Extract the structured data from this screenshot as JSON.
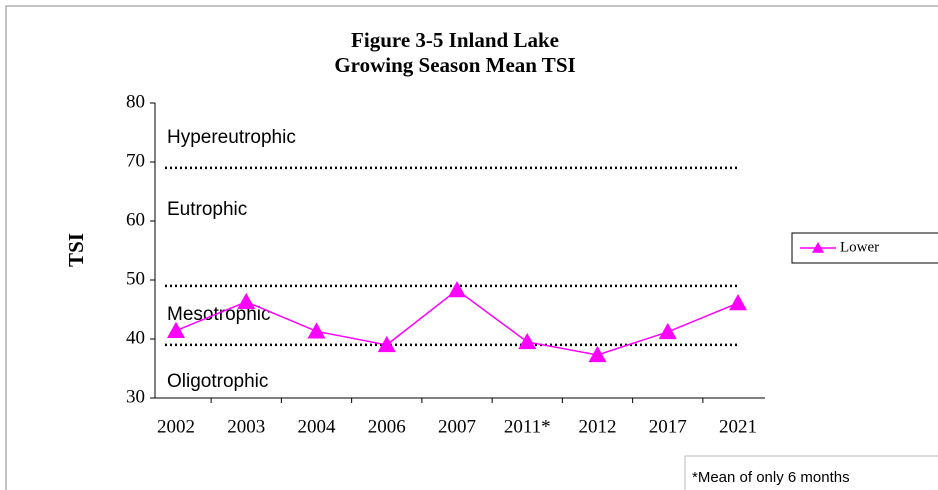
{
  "chart_data": {
    "type": "line",
    "title": [
      "Figure 3-5 Inland Lake",
      "Growing Season Mean TSI"
    ],
    "y_label": "TSI",
    "categories": [
      "2002",
      "2003",
      "2004",
      "2006",
      "2007",
      "2011*",
      "2012",
      "2017",
      "2021"
    ],
    "series": [
      {
        "name": "Lower",
        "color": "#ff00ff",
        "values": [
          41.4,
          46.3,
          41.3,
          39.0,
          48.3,
          39.5,
          37.3,
          41.2,
          46.1
        ]
      }
    ],
    "ylim": [
      30,
      80
    ],
    "yticks": [
      30,
      40,
      50,
      60,
      70,
      80
    ],
    "reference_lines": [
      69,
      49,
      39
    ],
    "zones": [
      "Hypereutrophic",
      "Eutrophic",
      "Mesotrophic",
      "Oligotrophic"
    ],
    "footnote": "*Mean of only 6 months",
    "legend": "right",
    "grid": false
  }
}
